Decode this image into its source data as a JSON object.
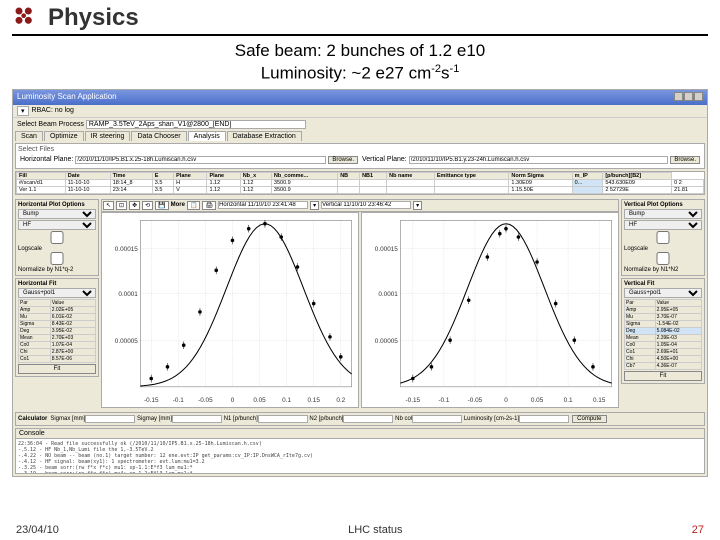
{
  "slide": {
    "title": "Physics",
    "subtitle_line1": "Safe beam: 2 bunches of 1.2 e10",
    "subtitle_line2_a": "Luminosity: ~2 e27 cm",
    "subtitle_line2_b": "-2",
    "subtitle_line2_c": "s",
    "subtitle_line2_d": "-1"
  },
  "app": {
    "title": "Luminosity Scan Application",
    "menu_label": "RBAC: no log",
    "select_label": "Select Beam Process",
    "select_value": "RAMP_3.5TeV_2Aps_shan_V1@2800_[END]",
    "tabs": [
      "Scan",
      "Optimize",
      "IR steering",
      "Data Chooser",
      "Analysis",
      "Database Extraction"
    ],
    "active_tab": 4,
    "files_label": "Select Files",
    "horiz_label": "Horizontal Plane:",
    "horiz_file": "/2010/11/10/IP5.B1.x.25-18h.Lumiscan.h.csv",
    "vert_label": "Vertical Plane:",
    "vert_file": "/2010/11/10/IP5.B1.y.23-24h.Lumiscan.h.csv",
    "browse": "Browse.",
    "table": {
      "cols": [
        "Fill",
        "Date",
        "Time",
        "E",
        "Plane",
        "Plane",
        "Nb_x",
        "Nb_comme...",
        "NB",
        "NB1",
        "Nb name",
        "Emittance type",
        "Norm Sigma",
        "m_IP",
        "[p/bunch][B2]"
      ],
      "rows": [
        [
          "#/scan/d1",
          "11-10-10",
          "18:14_8",
          "3.5",
          "H",
          "1.12",
          "1.12",
          "3500.9",
          "",
          "",
          "",
          "",
          "1.30E09",
          "0...",
          "543.630E09",
          "0 2"
        ],
        [
          "Ver 1.1",
          "11-10-10",
          "23:14",
          "3.5",
          "V",
          "1.12",
          "1.12",
          "3500.9",
          "",
          "",
          "",
          "",
          "1.15.50E",
          "",
          "2 52729E",
          "21.81"
        ]
      ],
      "hl_col": 13
    },
    "left_opts": {
      "hdr1": "Horizontal Plot Options",
      "bump": "Bump",
      "detector": "HF",
      "logscale": "Logscale",
      "normalize": "Normalize by N1*q-2",
      "hdr2": "Horizontal Fit",
      "fit_type": "Gauss+pol1",
      "fit_rows": [
        [
          "Par",
          "Value"
        ],
        [
          "Amp",
          "2.02E+05"
        ],
        [
          "Mu",
          "6.01E-02"
        ],
        [
          "Sigma",
          "8.43E-02"
        ],
        [
          "Deg",
          "3.95E-02"
        ],
        [
          "Mean",
          "2.70E+03"
        ],
        [
          "Co0",
          "1.07E-04"
        ],
        [
          "Chi",
          "2.87E+00"
        ],
        [
          "Co1",
          "8.57E-06"
        ]
      ],
      "fit_btn": "Fit"
    },
    "right_opts": {
      "hdr1": "Vertical Plot Options",
      "bump": "Bump",
      "detector": "HF",
      "logscale": "Logscale",
      "normalize": "Normalize by N1*N2",
      "hdr2": "Vertical Fit",
      "fit_type": "Gauss+pol1",
      "fit_rows": [
        [
          "Par",
          "Value"
        ],
        [
          "Amp",
          "2.95E+05"
        ],
        [
          "Mu",
          "3.70E-07"
        ],
        [
          "Sigma",
          "-1.54E-02"
        ],
        [
          "Deg",
          "5.084E-02"
        ],
        [
          "Mean",
          "2.39E-03"
        ],
        [
          "Co0",
          "1.05E-04"
        ],
        [
          "Co1",
          "2.69E+01"
        ],
        [
          "Chi",
          "4.50E+00"
        ],
        [
          "Cb7",
          "4.36E-07"
        ]
      ],
      "fit_btn": "Fit",
      "highlight_row": 4
    },
    "toolbar": {
      "horiz_field": "Horizontal 11/10/10 23:41:48",
      "vert_field": "Vertical 11/10/10 23:46:42"
    },
    "chart_left": {
      "type": "scatter-fit",
      "xlim": [
        -0.17,
        0.22
      ],
      "ylim": [
        0,
        0.00018
      ],
      "xticks": [
        "-0.15",
        "-0.1",
        "-0.05",
        "0",
        "0.05",
        "0.1",
        "0.15",
        "0.2"
      ],
      "yticks": [
        [
          "0.00005",
          0.28
        ],
        [
          "0.0001",
          0.56
        ],
        [
          "0.00015",
          0.83
        ]
      ],
      "points": [
        [
          -0.15,
          0.05
        ],
        [
          -0.12,
          0.12
        ],
        [
          -0.09,
          0.25
        ],
        [
          -0.06,
          0.45
        ],
        [
          -0.03,
          0.7
        ],
        [
          0.0,
          0.88
        ],
        [
          0.03,
          0.95
        ],
        [
          0.06,
          0.98
        ],
        [
          0.09,
          0.9
        ],
        [
          0.12,
          0.72
        ],
        [
          0.15,
          0.5
        ],
        [
          0.18,
          0.3
        ],
        [
          0.2,
          0.18
        ]
      ],
      "color": "#000",
      "fit_color": "#000",
      "bg": "#ffffff",
      "grid": "#cccccc"
    },
    "chart_right": {
      "type": "scatter-fit",
      "xlim": [
        -0.17,
        0.17
      ],
      "ylim": [
        0,
        0.00018
      ],
      "xticks": [
        "-0.15",
        "-0.1",
        "-0.05",
        "0",
        "0.05",
        "0.1",
        "0.15"
      ],
      "yticks": [
        [
          "0.00005",
          0.28
        ],
        [
          "0.0001",
          0.56
        ],
        [
          "0.00015",
          0.83
        ]
      ],
      "points": [
        [
          -0.15,
          0.05
        ],
        [
          -0.12,
          0.12
        ],
        [
          -0.09,
          0.28
        ],
        [
          -0.06,
          0.52
        ],
        [
          -0.03,
          0.78
        ],
        [
          -0.01,
          0.92
        ],
        [
          0.0,
          0.95
        ],
        [
          0.02,
          0.9
        ],
        [
          0.05,
          0.75
        ],
        [
          0.08,
          0.5
        ],
        [
          0.11,
          0.28
        ],
        [
          0.14,
          0.12
        ]
      ],
      "color": "#000",
      "fit_color": "#000",
      "bg": "#ffffff",
      "grid": "#cccccc"
    },
    "calc": {
      "hdr": "Calculator",
      "labels": [
        "Sigmax [mm]",
        "Sigmay [mm]",
        "N1 [p/bunch]",
        "N2 [p/bunch]",
        "Nb col",
        "Luminosity [cm-2s-1]"
      ],
      "compute": "Compute"
    },
    "console": {
      "hdr": "Console",
      "lines": [
        "22:36:04 - Read file successfully ok (/2010/11/10/IP5.B1.x.25-18h.Lumiscan.h.csv)",
        "-.5.12 -  HF Nb_1,Nb_Lumi file the 1,-3.5TeV.2",
        "-.4.22 -  NO beam -- beam (no.1) target number: 12  ene.evt:IP get_params:cv_IP:IP.DnsWCA_rIte7g.cv)",
        "-.4.12 -  HF signal: beam(xy1): 1 spectrometer: evt.lum:mu1=3.2",
        "-.3.25 -  beam sorr:(rw f*x  f*c) mu1: sp-1.1:E*f3 lum_mu1:*",
        "-.3.19 -  beam sorr:(re f*x  f*c) mu4: sp-1.2:E*l3 lum_mu1:*"
      ]
    }
  },
  "footer": {
    "date": "23/04/10",
    "center": "LHC status",
    "page": "27"
  }
}
